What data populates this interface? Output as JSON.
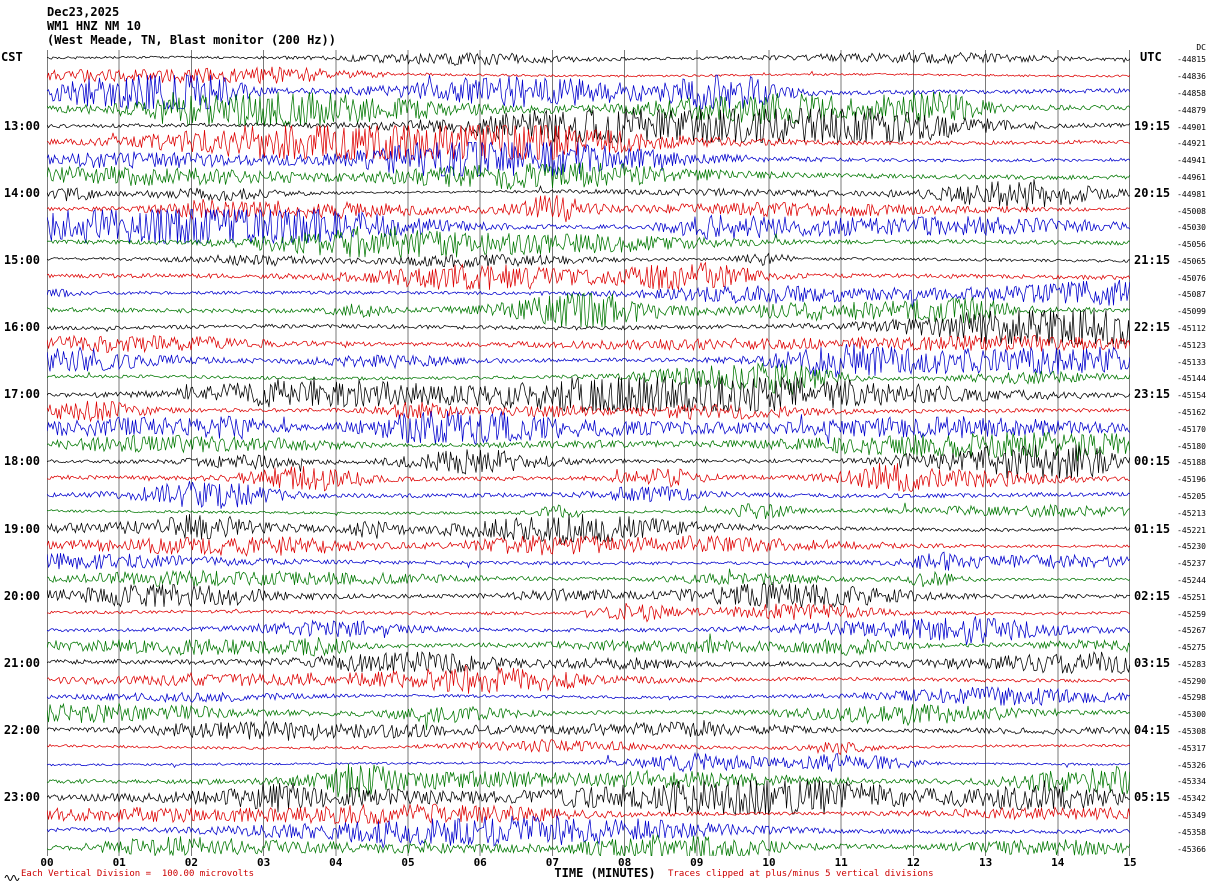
{
  "header": {
    "date": "Dec23,2025",
    "station": "WM1 HNZ NM 10",
    "description": "(West Meade, TN, Blast monitor (200 Hz))"
  },
  "axes": {
    "left_header": "CST",
    "right_header": "UTC",
    "dc_header": "DC"
  },
  "footer": {
    "scale_note": "Each Vertical Division =  100.00 microvolts",
    "clip_note": "Traces clipped at plus/minus 5 vertical divisions"
  },
  "colors": {
    "grid": "#7a7a7a",
    "annotation": "#cc0000",
    "text": "#000000",
    "background": "#ffffff"
  },
  "chart_data": {
    "type": "line",
    "title": "WM1 HNZ NM 10 (West Meade, TN, Blast monitor (200 Hz)) Dec23,2025",
    "xlabel": "TIME (MINUTES)",
    "x_ticks": [
      "00",
      "01",
      "02",
      "03",
      "04",
      "05",
      "06",
      "07",
      "08",
      "09",
      "10",
      "11",
      "12",
      "13",
      "14",
      "15"
    ],
    "x_range": [
      0,
      15
    ],
    "row_duration_minutes": 15,
    "rows_per_hour": 4,
    "trace_color_cycle": [
      "#000000",
      "#dd0000",
      "#0000cc",
      "#007700"
    ],
    "rows": [
      {
        "cst": "",
        "utc": "",
        "dc": "-44815"
      },
      {
        "cst": "",
        "utc": "",
        "dc": "-44836"
      },
      {
        "cst": "",
        "utc": "",
        "dc": "-44858"
      },
      {
        "cst": "",
        "utc": "",
        "dc": "-44879"
      },
      {
        "cst": "13:00",
        "utc": "19:15",
        "dc": "-44901"
      },
      {
        "cst": "",
        "utc": "",
        "dc": "-44921"
      },
      {
        "cst": "",
        "utc": "",
        "dc": "-44941"
      },
      {
        "cst": "",
        "utc": "",
        "dc": "-44961"
      },
      {
        "cst": "14:00",
        "utc": "20:15",
        "dc": "-44981"
      },
      {
        "cst": "",
        "utc": "",
        "dc": "-45008"
      },
      {
        "cst": "",
        "utc": "",
        "dc": "-45030"
      },
      {
        "cst": "",
        "utc": "",
        "dc": "-45056"
      },
      {
        "cst": "15:00",
        "utc": "21:15",
        "dc": "-45065"
      },
      {
        "cst": "",
        "utc": "",
        "dc": "-45076"
      },
      {
        "cst": "",
        "utc": "",
        "dc": "-45087"
      },
      {
        "cst": "",
        "utc": "",
        "dc": "-45099"
      },
      {
        "cst": "16:00",
        "utc": "22:15",
        "dc": "-45112"
      },
      {
        "cst": "",
        "utc": "",
        "dc": "-45123"
      },
      {
        "cst": "",
        "utc": "",
        "dc": "-45133"
      },
      {
        "cst": "",
        "utc": "",
        "dc": "-45144"
      },
      {
        "cst": "17:00",
        "utc": "23:15",
        "dc": "-45154"
      },
      {
        "cst": "",
        "utc": "",
        "dc": "-45162"
      },
      {
        "cst": "",
        "utc": "",
        "dc": "-45170"
      },
      {
        "cst": "",
        "utc": "",
        "dc": "-45180"
      },
      {
        "cst": "18:00",
        "utc": "00:15",
        "dc": "-45188"
      },
      {
        "cst": "",
        "utc": "",
        "dc": "-45196"
      },
      {
        "cst": "",
        "utc": "",
        "dc": "-45205"
      },
      {
        "cst": "",
        "utc": "",
        "dc": "-45213"
      },
      {
        "cst": "19:00",
        "utc": "01:15",
        "dc": "-45221"
      },
      {
        "cst": "",
        "utc": "",
        "dc": "-45230"
      },
      {
        "cst": "",
        "utc": "",
        "dc": "-45237"
      },
      {
        "cst": "",
        "utc": "",
        "dc": "-45244"
      },
      {
        "cst": "20:00",
        "utc": "02:15",
        "dc": "-45251"
      },
      {
        "cst": "",
        "utc": "",
        "dc": "-45259"
      },
      {
        "cst": "",
        "utc": "",
        "dc": "-45267"
      },
      {
        "cst": "",
        "utc": "",
        "dc": "-45275"
      },
      {
        "cst": "21:00",
        "utc": "03:15",
        "dc": "-45283"
      },
      {
        "cst": "",
        "utc": "",
        "dc": "-45290"
      },
      {
        "cst": "",
        "utc": "",
        "dc": "-45298"
      },
      {
        "cst": "",
        "utc": "",
        "dc": "-45300"
      },
      {
        "cst": "22:00",
        "utc": "04:15",
        "dc": "-45308"
      },
      {
        "cst": "",
        "utc": "",
        "dc": "-45317"
      },
      {
        "cst": "",
        "utc": "",
        "dc": "-45326"
      },
      {
        "cst": "",
        "utc": "",
        "dc": "-45334"
      },
      {
        "cst": "23:00",
        "utc": "05:15",
        "dc": "-45342"
      },
      {
        "cst": "",
        "utc": "",
        "dc": "-45349"
      },
      {
        "cst": "",
        "utc": "",
        "dc": "-45358"
      },
      {
        "cst": "",
        "utc": "",
        "dc": "-45366"
      }
    ]
  }
}
